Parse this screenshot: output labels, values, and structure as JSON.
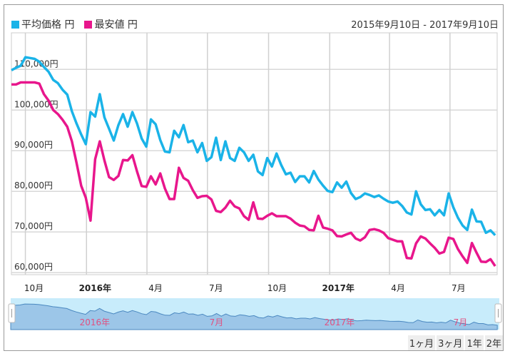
{
  "legend": [
    {
      "label": "平均価格 円",
      "color": "#1ab3e8"
    },
    {
      "label": "最安値 円",
      "color": "#e8168c"
    }
  ],
  "date_range": "2015年9月10日 - 2017年9月10日",
  "range_buttons": [
    "1ヶ月",
    "3ヶ月",
    "1年",
    "2年"
  ],
  "navigator": {
    "labels": [
      {
        "text": "2016年",
        "date": "2016-01-01"
      },
      {
        "text": "7月",
        "date": "2016-07-01"
      },
      {
        "text": "2017年",
        "date": "2017-01-01"
      },
      {
        "text": "7月",
        "date": "2017-07-01"
      }
    ],
    "label_color": "#e05080",
    "bg": "#c8ecfb",
    "fill": "#9cc6e8",
    "line": "#4a88c0"
  },
  "chart_data": {
    "type": "line",
    "title": "",
    "xlabel": "",
    "ylabel": "",
    "xlim": [
      "2015-09-10",
      "2017-09-10"
    ],
    "ylim": [
      59500,
      119000
    ],
    "grid": true,
    "legend_position": "top-left",
    "yticks": [
      {
        "value": 60000,
        "label": "60,000円"
      },
      {
        "value": 70000,
        "label": "70,000円"
      },
      {
        "value": 80000,
        "label": "80,000円"
      },
      {
        "value": 90000,
        "label": "90,000円"
      },
      {
        "value": 100000,
        "label": "100,000円"
      },
      {
        "value": 110000,
        "label": "110,000円"
      }
    ],
    "xticks": [
      {
        "date": "2015-10-01",
        "label": "10月",
        "bold": false
      },
      {
        "date": "2016-01-01",
        "label": "2016年",
        "bold": true
      },
      {
        "date": "2016-04-01",
        "label": "4月",
        "bold": false
      },
      {
        "date": "2016-07-01",
        "label": "7月",
        "bold": false
      },
      {
        "date": "2016-10-01",
        "label": "10月",
        "bold": false
      },
      {
        "date": "2017-01-01",
        "label": "2017年",
        "bold": true
      },
      {
        "date": "2017-04-01",
        "label": "4月",
        "bold": false
      },
      {
        "date": "2017-07-01",
        "label": "7月",
        "bold": false
      }
    ],
    "x": [
      "2015-09-10",
      "2015-09-17",
      "2015-09-24",
      "2015-10-01",
      "2015-10-08",
      "2015-10-15",
      "2015-10-22",
      "2015-10-29",
      "2015-11-05",
      "2015-11-12",
      "2015-11-19",
      "2015-11-26",
      "2015-12-03",
      "2015-12-10",
      "2015-12-17",
      "2015-12-24",
      "2015-12-31",
      "2016-01-07",
      "2016-01-14",
      "2016-01-21",
      "2016-01-28",
      "2016-02-04",
      "2016-02-11",
      "2016-02-18",
      "2016-02-25",
      "2016-03-03",
      "2016-03-10",
      "2016-03-17",
      "2016-03-24",
      "2016-03-31",
      "2016-04-07",
      "2016-04-14",
      "2016-04-21",
      "2016-04-28",
      "2016-05-05",
      "2016-05-12",
      "2016-05-19",
      "2016-05-26",
      "2016-06-02",
      "2016-06-09",
      "2016-06-16",
      "2016-06-23",
      "2016-06-30",
      "2016-07-07",
      "2016-07-14",
      "2016-07-21",
      "2016-07-28",
      "2016-08-04",
      "2016-08-11",
      "2016-08-18",
      "2016-08-25",
      "2016-09-01",
      "2016-09-08",
      "2016-09-15",
      "2016-09-22",
      "2016-09-29",
      "2016-10-06",
      "2016-10-13",
      "2016-10-20",
      "2016-10-27",
      "2016-11-03",
      "2016-11-10",
      "2016-11-17",
      "2016-11-24",
      "2016-12-01",
      "2016-12-08",
      "2016-12-15",
      "2016-12-22",
      "2016-12-29",
      "2017-01-05",
      "2017-01-12",
      "2017-01-19",
      "2017-01-26",
      "2017-02-02",
      "2017-02-09",
      "2017-02-16",
      "2017-02-23",
      "2017-03-02",
      "2017-03-09",
      "2017-03-16",
      "2017-03-23",
      "2017-03-30",
      "2017-04-06",
      "2017-04-13",
      "2017-04-20",
      "2017-04-27",
      "2017-05-04",
      "2017-05-11",
      "2017-05-18",
      "2017-05-25",
      "2017-06-01",
      "2017-06-08",
      "2017-06-15",
      "2017-06-22",
      "2017-06-29",
      "2017-07-06",
      "2017-07-13",
      "2017-07-20",
      "2017-07-27",
      "2017-08-03",
      "2017-08-10",
      "2017-08-17",
      "2017-08-24",
      "2017-08-31",
      "2017-09-07"
    ],
    "series": [
      {
        "name": "平均価格 円",
        "color": "#1ab3e8",
        "values": [
          109800,
          110400,
          110900,
          113000,
          112800,
          112600,
          111900,
          110600,
          109400,
          107400,
          106600,
          105000,
          103800,
          99700,
          96700,
          94000,
          91600,
          99500,
          98400,
          103900,
          98200,
          95400,
          92500,
          96300,
          99000,
          95900,
          99500,
          96700,
          93000,
          91000,
          97700,
          96500,
          92600,
          89800,
          89600,
          94900,
          93300,
          96300,
          92100,
          92500,
          89600,
          91900,
          87500,
          88400,
          93200,
          87700,
          92300,
          88200,
          87500,
          90700,
          89600,
          87500,
          89000,
          84900,
          84000,
          88200,
          86100,
          89300,
          86500,
          84200,
          84600,
          82300,
          83700,
          83700,
          82200,
          85000,
          82900,
          81400,
          80100,
          79800,
          82200,
          80900,
          82400,
          79600,
          78100,
          78600,
          79500,
          79100,
          78600,
          79000,
          78200,
          77500,
          77200,
          77500,
          76400,
          74800,
          74300,
          80000,
          76800,
          75400,
          75600,
          74100,
          75400,
          74100,
          79500,
          76100,
          73500,
          71600,
          70500,
          75500,
          72600,
          72500,
          69800,
          70400,
          69200
        ]
      },
      {
        "name": "最安値 円",
        "color": "#e8168c",
        "values": [
          106300,
          106300,
          106800,
          106800,
          106800,
          106800,
          106500,
          103900,
          102300,
          100000,
          99000,
          97600,
          95900,
          92300,
          87000,
          81400,
          78400,
          72800,
          87900,
          92300,
          87600,
          83500,
          82800,
          83800,
          87700,
          87600,
          88900,
          84900,
          81300,
          81100,
          83700,
          81700,
          84400,
          80700,
          78100,
          78100,
          85800,
          83300,
          82600,
          80300,
          78400,
          78800,
          78900,
          78000,
          75200,
          74900,
          76000,
          77700,
          76300,
          75800,
          73900,
          73000,
          77300,
          73300,
          73200,
          74000,
          74600,
          73900,
          73900,
          73900,
          73300,
          72300,
          71600,
          71400,
          70500,
          70400,
          74000,
          71100,
          70800,
          70400,
          69000,
          68900,
          69400,
          69800,
          68400,
          67900,
          68700,
          70500,
          70700,
          70400,
          69800,
          68500,
          68100,
          67700,
          67700,
          63600,
          63500,
          67200,
          68900,
          68400,
          67200,
          66100,
          64700,
          65100,
          68600,
          68300,
          65800,
          64000,
          62400,
          67300,
          64900,
          62700,
          62600,
          63300,
          61600
        ]
      }
    ]
  }
}
